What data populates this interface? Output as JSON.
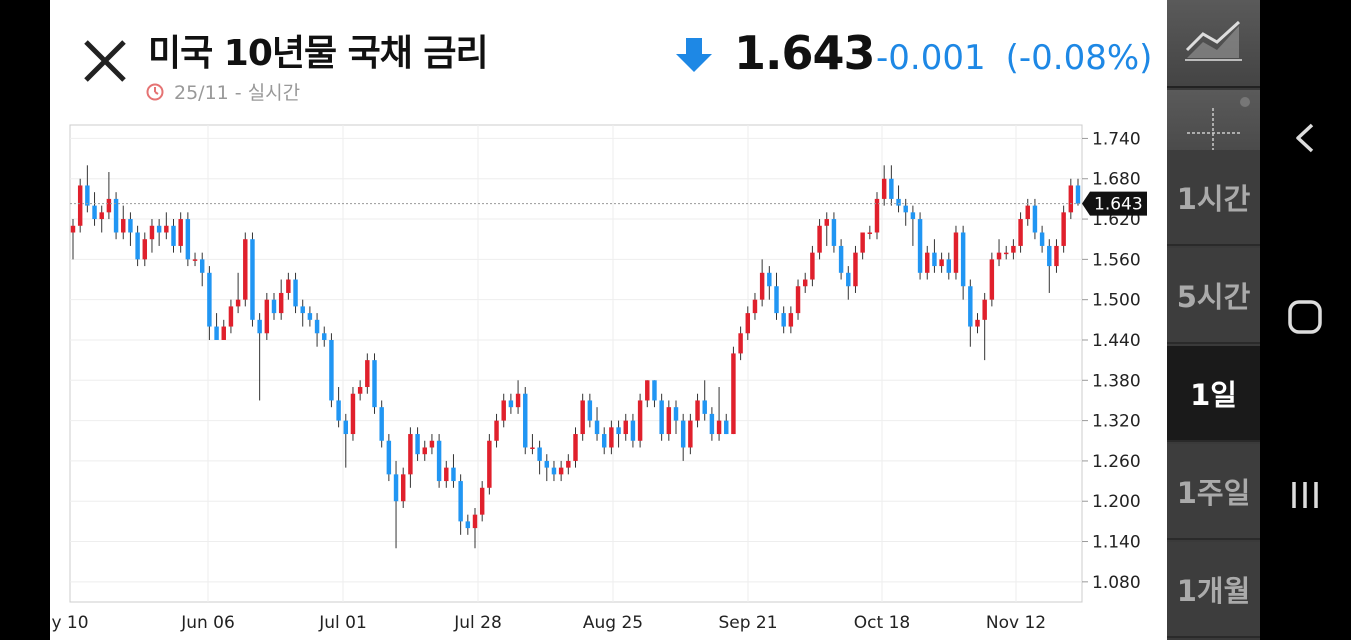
{
  "header": {
    "title": "미국 10년물 국채 금리",
    "timestamp": "25/11 - 실시간",
    "price": "1.643",
    "change": "-0.001",
    "change_pct": "(-0.08%)",
    "direction": "down"
  },
  "colors": {
    "up": "#e0202c",
    "down": "#2196f3",
    "accent": "#1e88e5"
  },
  "toolbar": {
    "tools": [
      "line-chart-icon",
      "crosshair-icon"
    ],
    "periods": [
      "1시간",
      "5시간",
      "1일",
      "1주일",
      "1개월"
    ],
    "active_period": "1일"
  },
  "chart_data": {
    "type": "candlestick",
    "ylim": [
      1.05,
      1.76
    ],
    "y_ticks": [
      "1.740",
      "1.680",
      "1.620",
      "1.560",
      "1.500",
      "1.440",
      "1.380",
      "1.320",
      "1.260",
      "1.200",
      "1.140",
      "1.080"
    ],
    "x_ticks": [
      "y 10",
      "Jun 06",
      "Jul 01",
      "Jul 28",
      "Aug 25",
      "Sep 21",
      "Oct 18",
      "Nov 12"
    ],
    "last_price_label": "1.643",
    "last_price": 1.643,
    "grid": true,
    "series": [
      {
        "name": "",
        "candles": [
          [
            1.6,
            1.61,
            1.56,
            1.62
          ],
          [
            1.61,
            1.67,
            1.6,
            1.68
          ],
          [
            1.67,
            1.64,
            1.63,
            1.7
          ],
          [
            1.64,
            1.62,
            1.61,
            1.66
          ],
          [
            1.62,
            1.63,
            1.6,
            1.64
          ],
          [
            1.63,
            1.65,
            1.62,
            1.69
          ],
          [
            1.65,
            1.6,
            1.59,
            1.66
          ],
          [
            1.6,
            1.62,
            1.59,
            1.64
          ],
          [
            1.62,
            1.6,
            1.58,
            1.63
          ],
          [
            1.6,
            1.56,
            1.55,
            1.61
          ],
          [
            1.56,
            1.59,
            1.55,
            1.6
          ],
          [
            1.59,
            1.61,
            1.57,
            1.62
          ],
          [
            1.61,
            1.6,
            1.58,
            1.62
          ],
          [
            1.6,
            1.61,
            1.59,
            1.63
          ],
          [
            1.61,
            1.58,
            1.57,
            1.62
          ],
          [
            1.58,
            1.62,
            1.57,
            1.63
          ],
          [
            1.62,
            1.56,
            1.55,
            1.63
          ],
          [
            1.56,
            1.56,
            1.55,
            1.57
          ],
          [
            1.56,
            1.54,
            1.52,
            1.57
          ],
          [
            1.54,
            1.46,
            1.44,
            1.55
          ],
          [
            1.46,
            1.44,
            1.44,
            1.48
          ],
          [
            1.44,
            1.46,
            1.44,
            1.47
          ],
          [
            1.46,
            1.49,
            1.45,
            1.5
          ],
          [
            1.49,
            1.5,
            1.48,
            1.54
          ],
          [
            1.5,
            1.59,
            1.49,
            1.6
          ],
          [
            1.59,
            1.47,
            1.46,
            1.6
          ],
          [
            1.47,
            1.45,
            1.35,
            1.48
          ],
          [
            1.45,
            1.5,
            1.44,
            1.51
          ],
          [
            1.5,
            1.48,
            1.47,
            1.51
          ],
          [
            1.48,
            1.51,
            1.47,
            1.53
          ],
          [
            1.51,
            1.53,
            1.5,
            1.54
          ],
          [
            1.53,
            1.49,
            1.48,
            1.54
          ],
          [
            1.49,
            1.48,
            1.46,
            1.5
          ],
          [
            1.48,
            1.47,
            1.46,
            1.49
          ],
          [
            1.47,
            1.45,
            1.43,
            1.48
          ],
          [
            1.45,
            1.44,
            1.43,
            1.46
          ],
          [
            1.44,
            1.35,
            1.34,
            1.45
          ],
          [
            1.35,
            1.32,
            1.31,
            1.37
          ],
          [
            1.32,
            1.3,
            1.25,
            1.33
          ],
          [
            1.3,
            1.36,
            1.29,
            1.37
          ],
          [
            1.36,
            1.37,
            1.35,
            1.38
          ],
          [
            1.37,
            1.41,
            1.36,
            1.42
          ],
          [
            1.41,
            1.34,
            1.33,
            1.42
          ],
          [
            1.34,
            1.29,
            1.28,
            1.35
          ],
          [
            1.29,
            1.24,
            1.23,
            1.3
          ],
          [
            1.24,
            1.2,
            1.13,
            1.26
          ],
          [
            1.2,
            1.24,
            1.19,
            1.25
          ],
          [
            1.24,
            1.3,
            1.22,
            1.31
          ],
          [
            1.3,
            1.27,
            1.26,
            1.31
          ],
          [
            1.27,
            1.28,
            1.26,
            1.29
          ],
          [
            1.28,
            1.29,
            1.27,
            1.3
          ],
          [
            1.29,
            1.23,
            1.22,
            1.3
          ],
          [
            1.23,
            1.25,
            1.22,
            1.26
          ],
          [
            1.25,
            1.23,
            1.22,
            1.27
          ],
          [
            1.23,
            1.17,
            1.15,
            1.24
          ],
          [
            1.17,
            1.16,
            1.15,
            1.18
          ],
          [
            1.16,
            1.18,
            1.13,
            1.19
          ],
          [
            1.18,
            1.22,
            1.17,
            1.23
          ],
          [
            1.22,
            1.29,
            1.21,
            1.3
          ],
          [
            1.29,
            1.32,
            1.28,
            1.33
          ],
          [
            1.32,
            1.35,
            1.31,
            1.36
          ],
          [
            1.35,
            1.34,
            1.33,
            1.36
          ],
          [
            1.34,
            1.36,
            1.33,
            1.38
          ],
          [
            1.36,
            1.28,
            1.27,
            1.37
          ],
          [
            1.28,
            1.28,
            1.27,
            1.3
          ],
          [
            1.28,
            1.26,
            1.24,
            1.29
          ],
          [
            1.26,
            1.25,
            1.23,
            1.27
          ],
          [
            1.25,
            1.24,
            1.23,
            1.26
          ],
          [
            1.24,
            1.25,
            1.23,
            1.26
          ],
          [
            1.25,
            1.26,
            1.24,
            1.27
          ],
          [
            1.26,
            1.3,
            1.25,
            1.31
          ],
          [
            1.3,
            1.35,
            1.29,
            1.36
          ],
          [
            1.35,
            1.32,
            1.31,
            1.36
          ],
          [
            1.32,
            1.3,
            1.29,
            1.34
          ],
          [
            1.3,
            1.28,
            1.27,
            1.31
          ],
          [
            1.28,
            1.31,
            1.27,
            1.32
          ],
          [
            1.31,
            1.3,
            1.28,
            1.32
          ],
          [
            1.3,
            1.32,
            1.29,
            1.33
          ],
          [
            1.32,
            1.29,
            1.28,
            1.33
          ],
          [
            1.29,
            1.35,
            1.28,
            1.36
          ],
          [
            1.35,
            1.38,
            1.34,
            1.38
          ],
          [
            1.38,
            1.35,
            1.34,
            1.38
          ],
          [
            1.35,
            1.3,
            1.29,
            1.36
          ],
          [
            1.3,
            1.34,
            1.29,
            1.35
          ],
          [
            1.34,
            1.32,
            1.3,
            1.35
          ],
          [
            1.32,
            1.28,
            1.26,
            1.33
          ],
          [
            1.28,
            1.32,
            1.27,
            1.33
          ],
          [
            1.32,
            1.35,
            1.31,
            1.36
          ],
          [
            1.35,
            1.33,
            1.32,
            1.38
          ],
          [
            1.33,
            1.3,
            1.29,
            1.34
          ],
          [
            1.3,
            1.32,
            1.29,
            1.37
          ],
          [
            1.32,
            1.3,
            1.3,
            1.33
          ],
          [
            1.3,
            1.42,
            1.3,
            1.43
          ],
          [
            1.42,
            1.45,
            1.41,
            1.46
          ],
          [
            1.45,
            1.48,
            1.44,
            1.49
          ],
          [
            1.48,
            1.5,
            1.47,
            1.51
          ],
          [
            1.5,
            1.54,
            1.49,
            1.56
          ],
          [
            1.54,
            1.52,
            1.5,
            1.55
          ],
          [
            1.52,
            1.48,
            1.47,
            1.54
          ],
          [
            1.48,
            1.46,
            1.45,
            1.49
          ],
          [
            1.46,
            1.48,
            1.45,
            1.49
          ],
          [
            1.48,
            1.52,
            1.47,
            1.53
          ],
          [
            1.52,
            1.53,
            1.51,
            1.54
          ],
          [
            1.53,
            1.57,
            1.52,
            1.58
          ],
          [
            1.57,
            1.61,
            1.56,
            1.62
          ],
          [
            1.61,
            1.62,
            1.58,
            1.63
          ],
          [
            1.62,
            1.58,
            1.57,
            1.63
          ],
          [
            1.58,
            1.54,
            1.53,
            1.59
          ],
          [
            1.54,
            1.52,
            1.5,
            1.55
          ],
          [
            1.52,
            1.57,
            1.51,
            1.58
          ],
          [
            1.57,
            1.6,
            1.56,
            1.6
          ],
          [
            1.6,
            1.6,
            1.59,
            1.61
          ],
          [
            1.6,
            1.65,
            1.59,
            1.66
          ],
          [
            1.65,
            1.68,
            1.64,
            1.7
          ],
          [
            1.68,
            1.65,
            1.64,
            1.7
          ],
          [
            1.65,
            1.64,
            1.63,
            1.67
          ],
          [
            1.64,
            1.63,
            1.61,
            1.65
          ],
          [
            1.63,
            1.62,
            1.58,
            1.64
          ],
          [
            1.62,
            1.54,
            1.53,
            1.63
          ],
          [
            1.54,
            1.57,
            1.53,
            1.58
          ],
          [
            1.57,
            1.55,
            1.54,
            1.59
          ],
          [
            1.55,
            1.56,
            1.54,
            1.57
          ],
          [
            1.56,
            1.54,
            1.53,
            1.57
          ],
          [
            1.54,
            1.6,
            1.53,
            1.61
          ],
          [
            1.6,
            1.52,
            1.5,
            1.61
          ],
          [
            1.52,
            1.46,
            1.43,
            1.53
          ],
          [
            1.46,
            1.47,
            1.45,
            1.48
          ],
          [
            1.47,
            1.5,
            1.41,
            1.51
          ],
          [
            1.5,
            1.56,
            1.49,
            1.57
          ],
          [
            1.56,
            1.57,
            1.55,
            1.59
          ],
          [
            1.57,
            1.57,
            1.56,
            1.58
          ],
          [
            1.57,
            1.58,
            1.56,
            1.59
          ],
          [
            1.58,
            1.62,
            1.57,
            1.63
          ],
          [
            1.62,
            1.64,
            1.61,
            1.65
          ],
          [
            1.64,
            1.6,
            1.59,
            1.65
          ],
          [
            1.6,
            1.58,
            1.57,
            1.61
          ],
          [
            1.58,
            1.55,
            1.51,
            1.59
          ],
          [
            1.55,
            1.58,
            1.54,
            1.59
          ],
          [
            1.58,
            1.63,
            1.57,
            1.64
          ],
          [
            1.63,
            1.67,
            1.62,
            1.68
          ],
          [
            1.67,
            1.643,
            1.64,
            1.68
          ]
        ]
      }
    ]
  }
}
